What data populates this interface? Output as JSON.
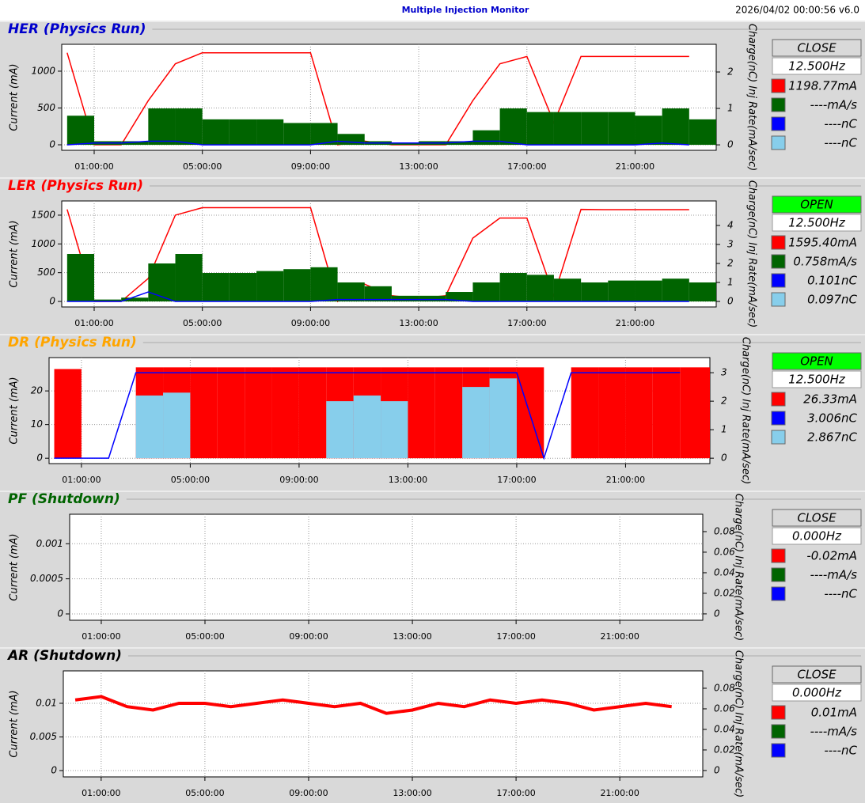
{
  "header": {
    "title": "Multiple Injection Monitor",
    "timestamp": "2026/04/02 00:00:56   v6.0"
  },
  "chart_data": [
    {
      "type": "line",
      "title": "HER  (Physics Run)",
      "title_color": "#0000cc",
      "status": "CLOSE",
      "status_color": "#d9d9d9",
      "rate": "12.500Hz",
      "y_label": "Current (mA)",
      "y2_label": "Charge(nC) Inj Rate(mA/sec)",
      "grid": true,
      "x": [
        0,
        1,
        2,
        3,
        4,
        5,
        6,
        7,
        8,
        9,
        10,
        11,
        12,
        13,
        14,
        15,
        16,
        17,
        18,
        19,
        20,
        21,
        22,
        23
      ],
      "xlim": [
        -0.2,
        24
      ],
      "xticks": [
        {
          "value": 1,
          "label": "01:00:00"
        },
        {
          "value": 5,
          "label": "05:00:00"
        },
        {
          "value": 9,
          "label": "09:00:00"
        },
        {
          "value": 13,
          "label": "13:00:00"
        },
        {
          "value": 17,
          "label": "17:00:00"
        },
        {
          "value": 21,
          "label": "21:00:00"
        }
      ],
      "ylim": [
        -75,
        1365
      ],
      "yticks": [
        0,
        500,
        1000
      ],
      "y2lim": [
        -0.15,
        2.76
      ],
      "y2ticks": [
        0,
        1,
        2
      ],
      "series": [
        {
          "name": "1198.77mA",
          "color": "#ff0000",
          "axis": "y",
          "fill": false,
          "values": [
            1250,
            0,
            0,
            600,
            1100,
            1250,
            1250,
            1250,
            1250,
            1250,
            0,
            50,
            0,
            0,
            0,
            600,
            1100,
            1200,
            300,
            1200,
            1200,
            1200,
            1200,
            1200
          ]
        },
        {
          "name": "----mA/s",
          "color": "#006400",
          "axis": "y2",
          "fill": true,
          "values": [
            0.8,
            0.1,
            0.1,
            1.0,
            1.0,
            0.7,
            0.7,
            0.7,
            0.6,
            0.6,
            0.3,
            0.1,
            0.05,
            0.1,
            0.1,
            0.4,
            1.0,
            0.9,
            0.9,
            0.9,
            0.9,
            0.8,
            1.0,
            0.7
          ]
        },
        {
          "name": "----nC",
          "color": "#0000ff",
          "axis": "y2",
          "fill": false,
          "values": [
            0,
            0.05,
            0.05,
            0.1,
            0.1,
            0,
            0,
            0,
            0,
            0,
            0.1,
            0.05,
            0.05,
            0.05,
            0.05,
            0.1,
            0.1,
            0,
            0,
            0,
            0,
            0,
            0.05,
            0
          ]
        },
        {
          "name": "----nC",
          "color": "#87ceeb",
          "axis": "y2",
          "fill": false,
          "values": [
            null,
            null,
            null,
            null,
            null,
            null,
            null,
            null,
            null,
            null,
            null,
            null,
            null,
            null,
            null,
            null,
            null,
            null,
            null,
            null,
            null,
            null,
            null,
            null
          ]
        }
      ]
    },
    {
      "type": "line",
      "title": "LER  (Physics Run)",
      "title_color": "#ff0000",
      "status": "OPEN",
      "status_color": "#00ff00",
      "rate": "12.500Hz",
      "y_label": "Current (mA)",
      "y2_label": "Charge(nC) Inj Rate(mA/sec)",
      "grid": true,
      "x": [
        0,
        1,
        2,
        3,
        4,
        5,
        6,
        7,
        8,
        9,
        10,
        11,
        12,
        13,
        14,
        15,
        16,
        17,
        18,
        19,
        20,
        21,
        22,
        23
      ],
      "xlim": [
        -0.2,
        24
      ],
      "xticks": [
        {
          "value": 1,
          "label": "01:00:00"
        },
        {
          "value": 5,
          "label": "05:00:00"
        },
        {
          "value": 9,
          "label": "09:00:00"
        },
        {
          "value": 13,
          "label": "13:00:00"
        },
        {
          "value": 17,
          "label": "17:00:00"
        },
        {
          "value": 21,
          "label": "21:00:00"
        }
      ],
      "ylim": [
        -96,
        1747
      ],
      "yticks": [
        0,
        500,
        1000,
        1500
      ],
      "y2lim": [
        -0.29,
        5.29
      ],
      "y2ticks": [
        0,
        1,
        2,
        3,
        4
      ],
      "series": [
        {
          "name": "1595.40mA",
          "color": "#ff0000",
          "axis": "y",
          "fill": false,
          "values": [
            1600,
            0,
            0,
            400,
            1500,
            1630,
            1630,
            1630,
            1630,
            1630,
            0,
            300,
            100,
            50,
            100,
            1100,
            1450,
            1450,
            100,
            1600,
            1595,
            1595,
            1595,
            1595
          ]
        },
        {
          "name": "0.758mA/s",
          "color": "#006400",
          "axis": "y2",
          "fill": true,
          "values": [
            2.5,
            0.1,
            0.2,
            2.0,
            2.5,
            1.5,
            1.5,
            1.6,
            1.7,
            1.8,
            1.0,
            0.8,
            0.3,
            0.3,
            0.5,
            1.0,
            1.5,
            1.4,
            1.2,
            1.0,
            1.1,
            1.1,
            1.2,
            1.0
          ]
        },
        {
          "name": "0.101nC",
          "color": "#0000ff",
          "axis": "y2",
          "fill": false,
          "values": [
            0,
            0,
            0,
            0.5,
            0,
            0,
            0,
            0,
            0,
            0,
            0.1,
            0.1,
            0.1,
            0.1,
            0.1,
            0,
            0,
            0,
            0,
            0,
            0,
            0,
            0,
            0
          ]
        },
        {
          "name": "0.097nC",
          "color": "#87ceeb",
          "axis": "y2",
          "fill": false,
          "values": [
            null,
            null,
            null,
            null,
            null,
            null,
            null,
            null,
            null,
            null,
            null,
            null,
            null,
            null,
            null,
            null,
            null,
            null,
            null,
            null,
            null,
            null,
            null,
            null
          ]
        }
      ]
    },
    {
      "type": "line",
      "title": "DR  (Physics Run)",
      "title_color": "#ffa500",
      "status": "OPEN",
      "status_color": "#00ff00",
      "rate": "12.500Hz",
      "y_label": "Current (mA)",
      "y2_label": "Charge(nC) Inj Rate(mA/sec)",
      "grid": true,
      "x": [
        0,
        1,
        2,
        3,
        4,
        5,
        6,
        7,
        8,
        9,
        10,
        11,
        12,
        13,
        14,
        15,
        16,
        17,
        18,
        19,
        20,
        21,
        22,
        23
      ],
      "xlim": [
        -0.19,
        24.1
      ],
      "xticks": [
        {
          "value": 1,
          "label": "01:00:00"
        },
        {
          "value": 5,
          "label": "05:00:00"
        },
        {
          "value": 9,
          "label": "09:00:00"
        },
        {
          "value": 13,
          "label": "13:00:00"
        },
        {
          "value": 17,
          "label": "17:00:00"
        },
        {
          "value": 21,
          "label": "21:00:00"
        }
      ],
      "ylim": [
        -1.6,
        29.9
      ],
      "yticks": [
        0,
        10,
        20
      ],
      "y2lim": [
        -0.19,
        3.53
      ],
      "y2ticks": [
        0,
        1,
        2,
        3
      ],
      "series": [
        {
          "name": "26.33mA",
          "color": "#ff0000",
          "axis": "y",
          "fill": true,
          "values": [
            26.5,
            0,
            0,
            27,
            27,
            27,
            27,
            27,
            27,
            27,
            27,
            27,
            27,
            27,
            27,
            27,
            27,
            27,
            0,
            27,
            27,
            27,
            27,
            27
          ]
        },
        {
          "name": "3.006nC",
          "color": "#0000ff",
          "axis": "y2",
          "fill": false,
          "values": [
            0,
            0,
            0,
            3.0,
            3.0,
            3.0,
            3.0,
            3.0,
            3.0,
            3.0,
            3.0,
            3.0,
            3.0,
            3.0,
            3.0,
            3.0,
            3.0,
            3.0,
            0,
            3.0,
            3.0,
            3.0,
            3.0,
            3.006
          ]
        },
        {
          "name": "2.867nC",
          "color": "#87ceeb",
          "axis": "y2",
          "fill": true,
          "values": [
            null,
            null,
            null,
            2.2,
            2.3,
            null,
            null,
            null,
            null,
            null,
            2.0,
            2.2,
            2.0,
            null,
            null,
            2.5,
            2.8,
            null,
            null,
            null,
            null,
            null,
            null,
            null
          ]
        }
      ]
    },
    {
      "type": "line",
      "title": "PF  (Shutdown)",
      "title_color": "#006400",
      "status": "CLOSE",
      "status_color": "#d9d9d9",
      "rate": "0.000Hz",
      "y_label": "Current (mA)",
      "y2_label": "Charge(nC) Inj Rate(mA/sec)",
      "grid": true,
      "x": [
        0,
        1,
        2,
        3,
        4,
        5,
        6,
        7,
        8,
        9,
        10,
        11,
        12,
        13,
        14,
        15,
        16,
        17,
        18,
        19,
        20,
        21,
        22,
        23
      ],
      "xlim": [
        -0.22,
        24.2
      ],
      "xticks": [
        {
          "value": 1,
          "label": "01:00:00"
        },
        {
          "value": 5,
          "label": "05:00:00"
        },
        {
          "value": 9,
          "label": "09:00:00"
        },
        {
          "value": 13,
          "label": "13:00:00"
        },
        {
          "value": 17,
          "label": "17:00:00"
        },
        {
          "value": 21,
          "label": "21:00:00"
        }
      ],
      "ylim": [
        -9e-05,
        0.00142
      ],
      "yticks": [
        0,
        0.0005,
        0.001
      ],
      "y2lim": [
        -0.0062,
        0.0969
      ],
      "y2ticks": [
        0,
        0.02,
        0.04,
        0.06,
        0.08
      ],
      "series": [
        {
          "name": "-0.02mA",
          "color": "#ff0000",
          "axis": "y",
          "fill": false,
          "values": [
            null,
            null,
            null,
            null,
            null,
            null,
            null,
            null,
            null,
            null,
            null,
            null,
            null,
            null,
            null,
            null,
            null,
            null,
            null,
            null,
            null,
            null,
            null,
            null
          ]
        },
        {
          "name": "----mA/s",
          "color": "#006400",
          "axis": "y2",
          "fill": true,
          "values": [
            null,
            null,
            null,
            null,
            null,
            null,
            null,
            null,
            null,
            null,
            null,
            null,
            null,
            null,
            null,
            null,
            null,
            null,
            null,
            null,
            null,
            null,
            null,
            null
          ]
        },
        {
          "name": "----nC",
          "color": "#0000ff",
          "axis": "y2",
          "fill": false,
          "values": [
            null,
            null,
            null,
            null,
            null,
            null,
            null,
            null,
            null,
            null,
            null,
            null,
            null,
            null,
            null,
            null,
            null,
            null,
            null,
            null,
            null,
            null,
            null,
            null
          ]
        }
      ]
    },
    {
      "type": "line",
      "title": "AR  (Shutdown)",
      "title_color": "#000000",
      "status": "CLOSE",
      "status_color": "#d9d9d9",
      "rate": "0.000Hz",
      "y_label": "Current (mA)",
      "y2_label": "Charge(nC) Inj Rate(mA/sec)",
      "grid": true,
      "x": [
        0,
        1,
        2,
        3,
        4,
        5,
        6,
        7,
        8,
        9,
        10,
        11,
        12,
        13,
        14,
        15,
        16,
        17,
        18,
        19,
        20,
        21,
        22,
        23
      ],
      "xlim": [
        -0.46,
        24.2
      ],
      "xticks": [
        {
          "value": 1,
          "label": "01:00:00"
        },
        {
          "value": 5,
          "label": "05:00:00"
        },
        {
          "value": 9,
          "label": "09:00:00"
        },
        {
          "value": 13,
          "label": "13:00:00"
        },
        {
          "value": 17,
          "label": "17:00:00"
        },
        {
          "value": 21,
          "label": "21:00:00"
        }
      ],
      "ylim": [
        -0.00094,
        0.01482
      ],
      "yticks": [
        0,
        0.005,
        0.01
      ],
      "y2lim": [
        -0.0062,
        0.0969
      ],
      "y2ticks": [
        0,
        0.02,
        0.04,
        0.06,
        0.08
      ],
      "series": [
        {
          "name": "0.01mA",
          "color": "#ff0000",
          "axis": "y",
          "fill": false,
          "values": [
            0.0105,
            0.011,
            0.0095,
            0.009,
            0.01,
            0.01,
            0.0095,
            0.01,
            0.0105,
            0.01,
            0.0095,
            0.01,
            0.0085,
            0.009,
            0.01,
            0.0095,
            0.0105,
            0.01,
            0.0105,
            0.01,
            0.009,
            0.0095,
            0.01,
            0.0095
          ]
        },
        {
          "name": "----mA/s",
          "color": "#006400",
          "axis": "y2",
          "fill": true,
          "values": [
            null,
            null,
            null,
            null,
            null,
            null,
            null,
            null,
            null,
            null,
            null,
            null,
            null,
            null,
            null,
            null,
            null,
            null,
            null,
            null,
            null,
            null,
            null,
            null
          ]
        },
        {
          "name": "----nC",
          "color": "#0000ff",
          "axis": "y2",
          "fill": false,
          "values": [
            null,
            null,
            null,
            null,
            null,
            null,
            null,
            null,
            null,
            null,
            null,
            null,
            null,
            null,
            null,
            null,
            null,
            null,
            null,
            null,
            null,
            null,
            null,
            null
          ]
        }
      ]
    }
  ]
}
